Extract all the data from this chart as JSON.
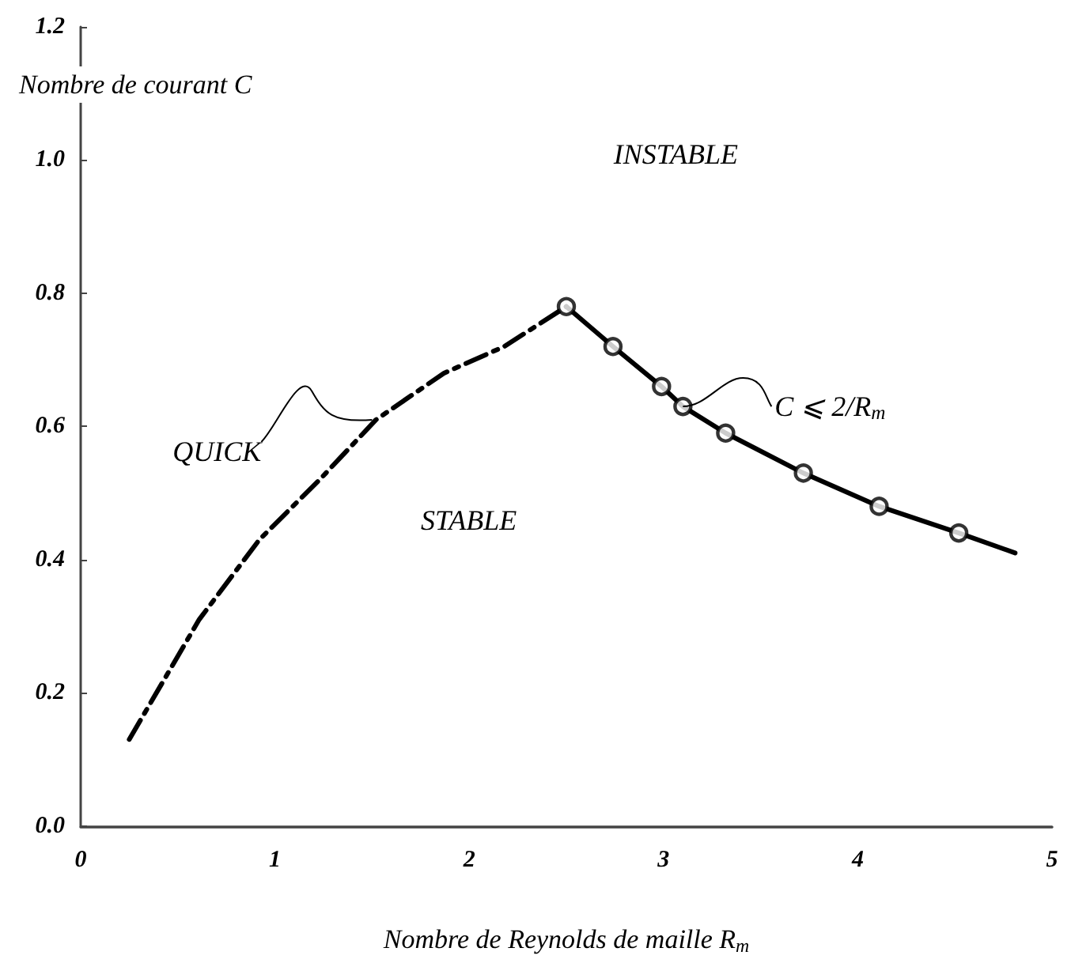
{
  "chart_data": {
    "type": "line",
    "xlabel": "Nombre de Reynolds de maille R$_{m}$",
    "ylabel": "Nombre de courant C",
    "xlim": [
      0,
      5
    ],
    "xticks": [
      0,
      1,
      2,
      3,
      4,
      5
    ],
    "ylim": [
      0,
      1.2
    ],
    "yticks": [
      {
        "value": 0,
        "label": "0.0"
      },
      {
        "value": 0.2,
        "label": "0.2"
      },
      {
        "value": 0.4,
        "label": "0.4"
      },
      {
        "value": 0.6,
        "label": "0.6"
      },
      {
        "value": 0.8,
        "label": "0.8"
      },
      {
        "value": 1,
        "label": "1.0"
      },
      {
        "value": 1.2,
        "label": "1.2"
      }
    ],
    "series": [
      {
        "color": "#000000",
        "line_style": "dashed",
        "marker": "none",
        "x": [
          0.25,
          0.61,
          0.92,
          1.23,
          1.52,
          1.87,
          2.18,
          2.5
        ],
        "values": [
          0.13,
          0.31,
          0.43,
          0.52,
          0.61,
          0.68,
          0.72,
          0.78
        ]
      },
      {
        "color": "#000000",
        "line_style": "solid",
        "marker": "none",
        "x": [
          2.5,
          2.74,
          2.99,
          3.1,
          3.32,
          3.72,
          4.11,
          4.52,
          4.81
        ],
        "values": [
          0.78,
          0.72,
          0.66,
          0.63,
          0.59,
          0.53,
          0.48,
          0.44,
          0.41
        ]
      },
      {
        "type": "scatter",
        "color": "#000000",
        "marker": "circle",
        "x": [
          2.5,
          2.74,
          2.99,
          3.1,
          3.32,
          3.72,
          4.11,
          4.52
        ],
        "values": [
          0.78,
          0.72,
          0.66,
          0.63,
          0.59,
          0.53,
          0.48,
          0.44
        ]
      }
    ],
    "annotations": [
      "INSTABLE",
      "STABLE",
      {
        "text": "QUICK",
        "x": 1.5,
        "y": 0.61
      },
      {
        "text": "C ⩽ 2/R$_{m}$",
        "x": 3.1,
        "y": 0.63
      }
    ]
  }
}
